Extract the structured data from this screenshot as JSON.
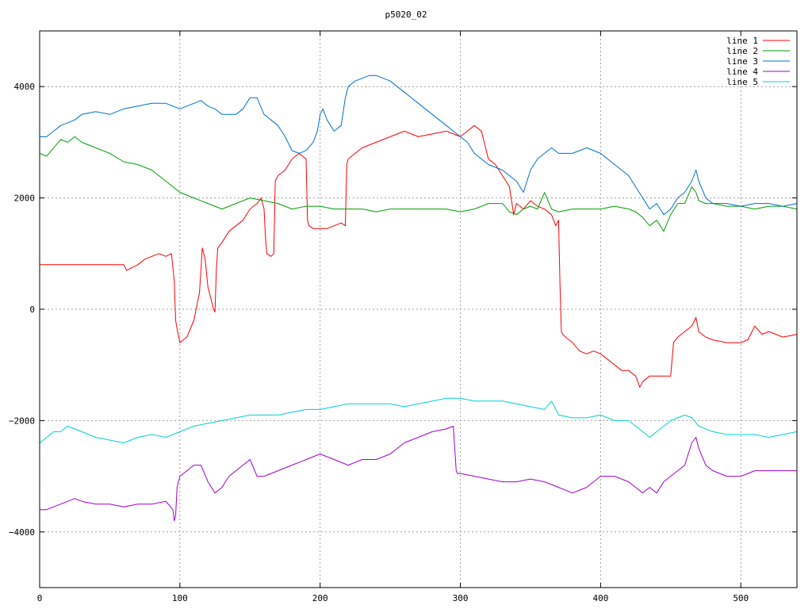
{
  "chart_data": {
    "type": "line",
    "title": "p5020_02",
    "xlabel": "",
    "ylabel": "",
    "xlim": [
      0,
      540
    ],
    "ylim": [
      -5000,
      5000
    ],
    "x_ticks": [
      0,
      100,
      200,
      300,
      400,
      500
    ],
    "y_ticks": [
      -4000,
      -2000,
      0,
      2000,
      4000
    ],
    "grid": true,
    "legend_position": "top-right",
    "series": [
      {
        "name": "line 1",
        "color": "#ff0000",
        "x": [
          0,
          20,
          40,
          60,
          62,
          66,
          70,
          75,
          80,
          85,
          90,
          94,
          96,
          97,
          98,
          100,
          105,
          110,
          114,
          116,
          118,
          120,
          122,
          124,
          125,
          126,
          127,
          130,
          135,
          140,
          145,
          150,
          155,
          158,
          160,
          161,
          162,
          165,
          167,
          168,
          170,
          175,
          180,
          185,
          190,
          191,
          192,
          195,
          200,
          205,
          210,
          215,
          218,
          219,
          220,
          225,
          230,
          240,
          250,
          260,
          270,
          280,
          290,
          300,
          305,
          310,
          315,
          320,
          325,
          330,
          335,
          338,
          340,
          345,
          350,
          355,
          360,
          365,
          368,
          370,
          371,
          372,
          373,
          375,
          380,
          385,
          390,
          395,
          400,
          405,
          410,
          415,
          420,
          425,
          428,
          430,
          435,
          440,
          445,
          450,
          452,
          455,
          460,
          465,
          468,
          470,
          475,
          480,
          490,
          500,
          505,
          510,
          515,
          520,
          530,
          540
        ],
        "y": [
          800,
          800,
          800,
          800,
          700,
          750,
          800,
          900,
          950,
          1000,
          950,
          1000,
          500,
          -200,
          -350,
          -600,
          -500,
          -200,
          300,
          1100,
          900,
          400,
          200,
          0,
          -50,
          700,
          1100,
          1200,
          1400,
          1500,
          1600,
          1800,
          1900,
          2000,
          1800,
          1300,
          1000,
          950,
          1000,
          2300,
          2400,
          2500,
          2700,
          2800,
          2700,
          1600,
          1500,
          1450,
          1450,
          1450,
          1500,
          1550,
          1500,
          2600,
          2700,
          2800,
          2900,
          3000,
          3100,
          3200,
          3100,
          3150,
          3200,
          3100,
          3200,
          3300,
          3200,
          2700,
          2600,
          2400,
          2200,
          1700,
          1900,
          1800,
          1950,
          1850,
          1800,
          1700,
          1500,
          1600,
          500,
          -400,
          -450,
          -500,
          -600,
          -750,
          -800,
          -750,
          -800,
          -900,
          -1000,
          -1100,
          -1100,
          -1200,
          -1400,
          -1300,
          -1200,
          -1200,
          -1200,
          -1200,
          -600,
          -500,
          -400,
          -300,
          -150,
          -400,
          -500,
          -550,
          -600,
          -600,
          -550,
          -300,
          -450,
          -400,
          -500,
          -450
        ]
      },
      {
        "name": "line 2",
        "color": "#00a000",
        "x": [
          0,
          5,
          10,
          15,
          20,
          25,
          30,
          35,
          40,
          50,
          60,
          70,
          80,
          90,
          100,
          110,
          120,
          130,
          140,
          150,
          160,
          170,
          180,
          190,
          200,
          210,
          220,
          230,
          240,
          250,
          260,
          270,
          280,
          290,
          300,
          310,
          320,
          330,
          335,
          340,
          345,
          350,
          355,
          360,
          365,
          370,
          380,
          390,
          400,
          410,
          420,
          425,
          430,
          435,
          440,
          445,
          450,
          455,
          460,
          465,
          468,
          470,
          475,
          480,
          490,
          500,
          510,
          520,
          530,
          540
        ],
        "y": [
          2800,
          2750,
          2900,
          3050,
          3000,
          3100,
          3000,
          2950,
          2900,
          2800,
          2650,
          2600,
          2500,
          2300,
          2100,
          2000,
          1900,
          1800,
          1900,
          2000,
          1950,
          1900,
          1800,
          1850,
          1850,
          1800,
          1800,
          1800,
          1750,
          1800,
          1800,
          1800,
          1800,
          1800,
          1750,
          1800,
          1900,
          1900,
          1750,
          1700,
          1800,
          1850,
          1800,
          2100,
          1800,
          1750,
          1800,
          1800,
          1800,
          1850,
          1800,
          1750,
          1650,
          1500,
          1600,
          1400,
          1700,
          1900,
          1900,
          2200,
          2100,
          1950,
          1900,
          1900,
          1850,
          1850,
          1800,
          1850,
          1850,
          1800
        ]
      },
      {
        "name": "line 3",
        "color": "#0070d0",
        "x": [
          0,
          5,
          10,
          15,
          20,
          25,
          30,
          40,
          50,
          60,
          70,
          80,
          90,
          95,
          100,
          105,
          110,
          115,
          120,
          125,
          130,
          140,
          145,
          150,
          155,
          160,
          165,
          170,
          175,
          180,
          185,
          190,
          195,
          198,
          200,
          202,
          205,
          210,
          215,
          218,
          220,
          225,
          230,
          235,
          240,
          245,
          250,
          260,
          270,
          280,
          290,
          295,
          300,
          305,
          310,
          315,
          320,
          330,
          340,
          345,
          350,
          355,
          360,
          365,
          370,
          380,
          390,
          400,
          410,
          420,
          425,
          430,
          435,
          440,
          445,
          450,
          455,
          460,
          465,
          468,
          470,
          475,
          480,
          490,
          500,
          510,
          520,
          530,
          540
        ],
        "y": [
          3100,
          3100,
          3200,
          3300,
          3350,
          3400,
          3500,
          3550,
          3500,
          3600,
          3650,
          3700,
          3700,
          3650,
          3600,
          3650,
          3700,
          3750,
          3650,
          3600,
          3500,
          3500,
          3600,
          3800,
          3800,
          3500,
          3400,
          3300,
          3100,
          2850,
          2800,
          2850,
          3000,
          3200,
          3500,
          3600,
          3400,
          3200,
          3300,
          3800,
          4000,
          4100,
          4150,
          4200,
          4200,
          4150,
          4100,
          3900,
          3700,
          3500,
          3300,
          3200,
          3100,
          3000,
          2800,
          2700,
          2600,
          2500,
          2300,
          2100,
          2500,
          2700,
          2800,
          2900,
          2800,
          2800,
          2900,
          2800,
          2600,
          2400,
          2200,
          2000,
          1800,
          1900,
          1700,
          1800,
          2000,
          2100,
          2300,
          2500,
          2300,
          2000,
          1900,
          1900,
          1850,
          1900,
          1900,
          1850,
          1900
        ]
      },
      {
        "name": "line 4",
        "color": "#a000d0",
        "x": [
          0,
          5,
          10,
          15,
          20,
          25,
          30,
          40,
          50,
          60,
          70,
          80,
          90,
          95,
          96,
          97,
          98,
          100,
          105,
          110,
          115,
          120,
          125,
          130,
          135,
          140,
          145,
          150,
          155,
          160,
          170,
          180,
          190,
          200,
          210,
          220,
          230,
          240,
          250,
          260,
          270,
          280,
          290,
          295,
          296,
          297,
          298,
          300,
          310,
          320,
          330,
          340,
          350,
          360,
          370,
          380,
          390,
          400,
          410,
          420,
          425,
          430,
          435,
          440,
          445,
          450,
          455,
          460,
          465,
          468,
          470,
          475,
          480,
          490,
          500,
          510,
          520,
          530,
          540
        ],
        "y": [
          -3600,
          -3600,
          -3550,
          -3500,
          -3450,
          -3400,
          -3450,
          -3500,
          -3500,
          -3550,
          -3500,
          -3500,
          -3450,
          -3600,
          -3800,
          -3700,
          -3200,
          -3000,
          -2900,
          -2800,
          -2800,
          -3100,
          -3300,
          -3200,
          -3000,
          -2900,
          -2800,
          -2700,
          -3000,
          -3000,
          -2900,
          -2800,
          -2700,
          -2600,
          -2700,
          -2800,
          -2700,
          -2700,
          -2600,
          -2400,
          -2300,
          -2200,
          -2150,
          -2100,
          -2500,
          -2900,
          -2950,
          -2950,
          -3000,
          -3050,
          -3100,
          -3100,
          -3050,
          -3100,
          -3200,
          -3300,
          -3200,
          -3000,
          -3000,
          -3100,
          -3200,
          -3300,
          -3200,
          -3300,
          -3100,
          -3000,
          -2900,
          -2800,
          -2400,
          -2300,
          -2500,
          -2800,
          -2900,
          -3000,
          -3000,
          -2900,
          -2900,
          -2900,
          -2900
        ]
      },
      {
        "name": "line 5",
        "color": "#00d0d0",
        "x": [
          0,
          5,
          10,
          15,
          20,
          25,
          30,
          40,
          50,
          60,
          70,
          80,
          90,
          100,
          110,
          120,
          130,
          140,
          150,
          160,
          170,
          180,
          190,
          200,
          210,
          220,
          230,
          240,
          250,
          260,
          270,
          280,
          290,
          300,
          310,
          320,
          330,
          340,
          350,
          360,
          365,
          370,
          380,
          390,
          400,
          410,
          420,
          425,
          430,
          435,
          440,
          445,
          450,
          455,
          460,
          465,
          470,
          480,
          490,
          500,
          510,
          520,
          530,
          540
        ],
        "y": [
          -2400,
          -2300,
          -2200,
          -2200,
          -2100,
          -2150,
          -2200,
          -2300,
          -2350,
          -2400,
          -2300,
          -2250,
          -2300,
          -2200,
          -2100,
          -2050,
          -2000,
          -1950,
          -1900,
          -1900,
          -1900,
          -1850,
          -1800,
          -1800,
          -1750,
          -1700,
          -1700,
          -1700,
          -1700,
          -1750,
          -1700,
          -1650,
          -1600,
          -1600,
          -1650,
          -1650,
          -1650,
          -1700,
          -1750,
          -1800,
          -1650,
          -1900,
          -1950,
          -1950,
          -1900,
          -2000,
          -2000,
          -2100,
          -2200,
          -2300,
          -2200,
          -2100,
          -2000,
          -1950,
          -1900,
          -1950,
          -2100,
          -2200,
          -2250,
          -2250,
          -2250,
          -2300,
          -2250,
          -2200
        ]
      }
    ]
  }
}
